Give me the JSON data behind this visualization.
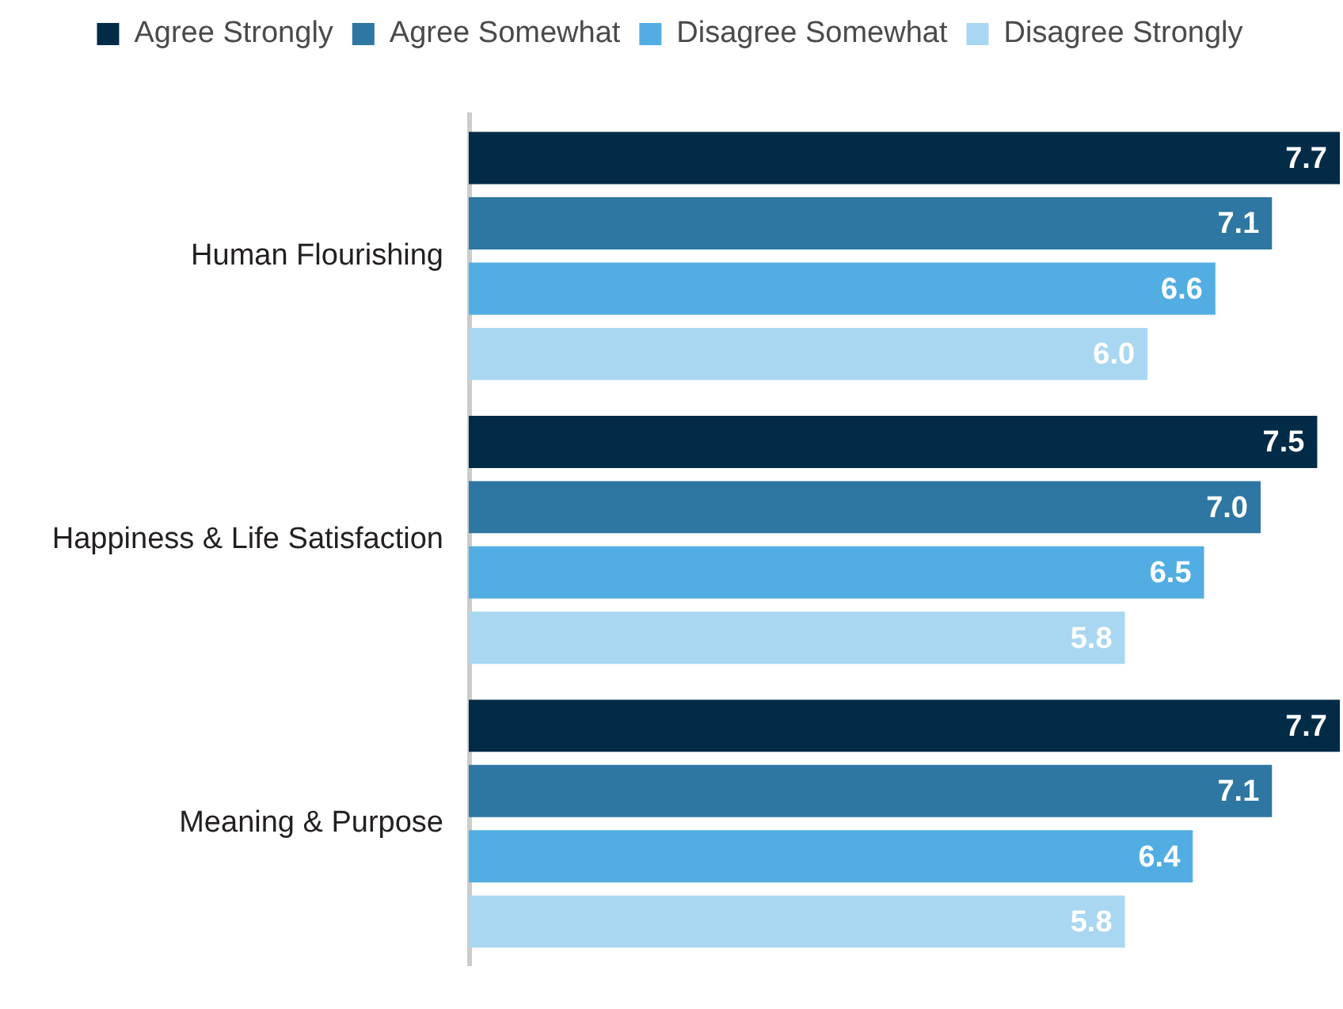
{
  "chart_data": {
    "type": "bar",
    "orientation": "horizontal",
    "categories": [
      "Human Flourishing",
      "Happiness & Life Satisfaction",
      "Meaning & Purpose"
    ],
    "series": [
      {
        "name": "Agree Strongly",
        "color": "#022b48",
        "values": [
          7.7,
          7.5,
          7.7
        ],
        "value_labels": [
          "7.7",
          "7.5",
          "7.7"
        ]
      },
      {
        "name": "Agree Somewhat",
        "color": "#2e77a2",
        "values": [
          7.1,
          7.0,
          7.1
        ],
        "value_labels": [
          "7.1",
          "7.0",
          "7.1"
        ]
      },
      {
        "name": "Disagree Somewhat",
        "color": "#52aee2",
        "values": [
          6.6,
          6.5,
          6.4
        ],
        "value_labels": [
          "6.6",
          "6.5",
          "6.4"
        ]
      },
      {
        "name": "Disagree Strongly",
        "color": "#a9d7f1",
        "values": [
          6.0,
          5.8,
          5.8
        ],
        "value_labels": [
          "6.0",
          "5.8",
          "5.8"
        ]
      }
    ],
    "xlim": [
      0,
      7.7
    ],
    "tick_labels": "y",
    "grid": false,
    "legend": "top"
  }
}
